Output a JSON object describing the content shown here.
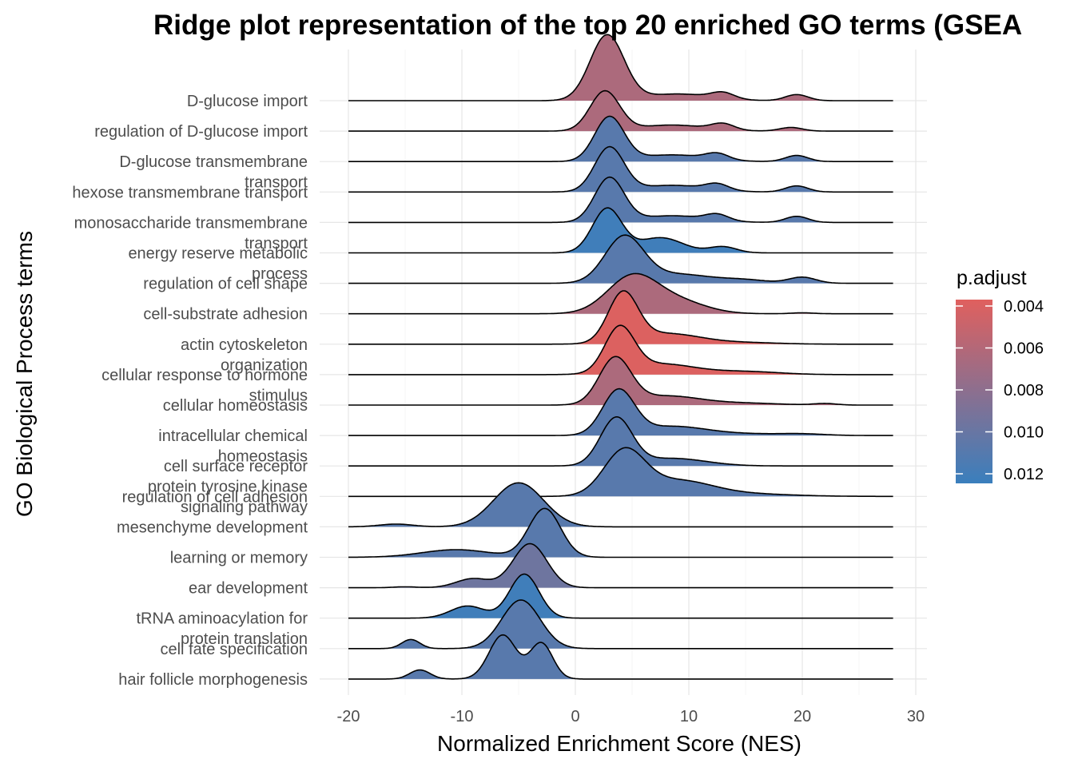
{
  "chart_data": {
    "type": "ridge",
    "title": "Ridge plot representation of the top 20 enriched GO terms (GSEA",
    "xlabel": "Normalized Enrichment Score (NES)",
    "ylabel": "GO Biological Process terms",
    "xlim": [
      -22,
      31
    ],
    "xticks": [
      "-20",
      "-10",
      "0",
      "10",
      "20",
      "30"
    ],
    "legend": {
      "title": "p.adjust",
      "position": "right",
      "labels": [
        "0.004",
        "0.006",
        "0.008",
        "0.010",
        "0.012"
      ],
      "color_low": "#e0605e",
      "color_high": "#3a7fbd"
    },
    "series": [
      {
        "term": "D-glucose import",
        "p_adjust": 0.0066,
        "range": [
          -20,
          28
        ],
        "peaks": [
          [
            2.8,
            1.5,
            2.15
          ],
          [
            9,
            3,
            0.22
          ],
          [
            13,
            1.0,
            0.2
          ],
          [
            19.5,
            1.0,
            0.2
          ]
        ]
      },
      {
        "term": "regulation of D-glucose import",
        "p_adjust": 0.0066,
        "range": [
          -20,
          28
        ],
        "peaks": [
          [
            2.6,
            1.3,
            1.3
          ],
          [
            8.5,
            3,
            0.2
          ],
          [
            13,
            1.0,
            0.2
          ],
          [
            19,
            1.0,
            0.12
          ]
        ]
      },
      {
        "term": "D-glucose transmembrane\ntransport",
        "p_adjust": 0.0112,
        "range": [
          -20,
          28
        ],
        "peaks": [
          [
            3.0,
            1.3,
            1.45
          ],
          [
            8.5,
            3,
            0.22
          ],
          [
            12.5,
            1.0,
            0.2
          ],
          [
            19.5,
            1.0,
            0.2
          ]
        ]
      },
      {
        "term": "hexose transmembrane transport",
        "p_adjust": 0.0112,
        "range": [
          -20,
          28
        ],
        "peaks": [
          [
            3.0,
            1.3,
            1.45
          ],
          [
            8.5,
            3,
            0.22
          ],
          [
            12.5,
            1.0,
            0.2
          ],
          [
            19.5,
            1.0,
            0.2
          ]
        ]
      },
      {
        "term": "monosaccharide transmembrane\ntransport",
        "p_adjust": 0.0112,
        "range": [
          -20,
          28
        ],
        "peaks": [
          [
            3.0,
            1.3,
            1.45
          ],
          [
            8.5,
            3,
            0.22
          ],
          [
            12.5,
            1.0,
            0.2
          ],
          [
            19.5,
            1.0,
            0.2
          ]
        ]
      },
      {
        "term": "energy reserve metabolic\nprocess",
        "p_adjust": 0.0125,
        "range": [
          -20,
          28
        ],
        "peaks": [
          [
            2.8,
            1.3,
            1.45
          ],
          [
            7.5,
            2,
            0.5
          ],
          [
            13,
            1.2,
            0.2
          ]
        ]
      },
      {
        "term": "regulation of cell shape",
        "p_adjust": 0.0112,
        "range": [
          -20,
          28
        ],
        "peaks": [
          [
            4.3,
            1.7,
            1.5
          ],
          [
            9,
            3,
            0.3
          ],
          [
            15,
            2,
            0.1
          ],
          [
            20,
            1.2,
            0.2
          ]
        ]
      },
      {
        "term": "cell-substrate adhesion",
        "p_adjust": 0.0066,
        "range": [
          -20,
          28
        ],
        "peaks": [
          [
            5.0,
            2.2,
            1.2
          ],
          [
            9.0,
            2.5,
            0.4
          ],
          [
            20,
            1.0,
            0.03
          ]
        ]
      },
      {
        "term": "actin cytoskeleton\norganization",
        "p_adjust": 0.004,
        "range": [
          -20,
          28
        ],
        "peaks": [
          [
            4.2,
            1.3,
            1.6
          ],
          [
            8.0,
            3.0,
            0.35
          ],
          [
            15,
            3,
            0.05
          ]
        ]
      },
      {
        "term": "cellular response to hormone\nstimulus",
        "p_adjust": 0.004,
        "range": [
          -20,
          28
        ],
        "peaks": [
          [
            3.9,
            1.3,
            1.45
          ],
          [
            7.5,
            3.0,
            0.35
          ],
          [
            15,
            3,
            0.1
          ]
        ]
      },
      {
        "term": "cellular homeostasis",
        "p_adjust": 0.0066,
        "range": [
          -20,
          28
        ],
        "peaks": [
          [
            3.5,
            1.4,
            1.5
          ],
          [
            8.0,
            3.0,
            0.3
          ],
          [
            15,
            3,
            0.06
          ],
          [
            22,
            1.0,
            0.05
          ]
        ]
      },
      {
        "term": "intracellular chemical\nhomeostasis",
        "p_adjust": 0.0112,
        "range": [
          -20,
          28
        ],
        "peaks": [
          [
            3.8,
            1.4,
            1.45
          ],
          [
            8.5,
            3.0,
            0.3
          ],
          [
            15,
            3,
            0.05
          ],
          [
            20,
            2.0,
            0.05
          ]
        ]
      },
      {
        "term": "cell surface receptor\nprotein tyrosine kinase\nsignaling pathway",
        "p_adjust": 0.0112,
        "range": [
          -20,
          28
        ],
        "peaks": [
          [
            3.6,
            1.4,
            1.55
          ],
          [
            8.5,
            3.0,
            0.25
          ]
        ]
      },
      {
        "term": "regulation of cell adhesion",
        "p_adjust": 0.0112,
        "range": [
          -20,
          28
        ],
        "peaks": [
          [
            4.3,
            1.8,
            1.45
          ],
          [
            9,
            3.0,
            0.5
          ],
          [
            15,
            4,
            0.08
          ]
        ]
      },
      {
        "term": "mesenchyme development",
        "p_adjust": 0.0112,
        "range": [
          -20,
          28
        ],
        "peaks": [
          [
            -5.0,
            2.2,
            1.45
          ],
          [
            -15.8,
            1.5,
            0.09
          ]
        ]
      },
      {
        "term": "learning or memory",
        "p_adjust": 0.0112,
        "range": [
          -20,
          28
        ],
        "peaks": [
          [
            -2.7,
            1.4,
            1.6
          ],
          [
            -10.5,
            3,
            0.25
          ]
        ]
      },
      {
        "term": "ear development",
        "p_adjust": 0.01,
        "range": [
          -20,
          28
        ],
        "peaks": [
          [
            -4.0,
            1.5,
            1.45
          ],
          [
            -9.0,
            1.5,
            0.3
          ],
          [
            -15,
            1.0,
            0.03
          ]
        ]
      },
      {
        "term": "tRNA aminoacylation for\nprotein translation",
        "p_adjust": 0.0125,
        "range": [
          -20,
          28
        ],
        "peaks": [
          [
            -4.5,
            1.3,
            1.45
          ],
          [
            -9.5,
            1.5,
            0.4
          ]
        ]
      },
      {
        "term": "cell fate specification",
        "p_adjust": 0.0112,
        "range": [
          -20,
          28
        ],
        "peaks": [
          [
            -4.8,
            1.7,
            1.6
          ],
          [
            -14.5,
            0.8,
            0.3
          ]
        ]
      },
      {
        "term": "hair follicle morphogenesis",
        "p_adjust": 0.0112,
        "range": [
          -20,
          28
        ],
        "peaks": [
          [
            -6.4,
            1.2,
            1.45
          ],
          [
            -3.0,
            1.0,
            1.18
          ],
          [
            -13.7,
            0.9,
            0.3
          ]
        ]
      }
    ]
  }
}
